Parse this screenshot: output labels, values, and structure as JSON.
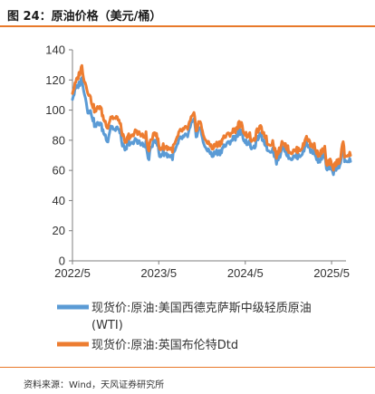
{
  "header": {
    "title": "图 24：原油价格（美元/桶）"
  },
  "footer": {
    "source": "资料来源：Wind，天风证券研究所"
  },
  "chart_data": {
    "type": "line",
    "title": "",
    "xlabel": "",
    "ylabel": "",
    "ylim": [
      0,
      140
    ],
    "yticks": [
      0,
      20,
      40,
      60,
      80,
      100,
      120,
      140
    ],
    "xticks": [
      "2022/5",
      "2023/5",
      "2024/5",
      "2025/5"
    ],
    "xrange": [
      "2022/5",
      "2025/7"
    ],
    "grid": false,
    "legend_position": "bottom",
    "series": [
      {
        "name": "现货价:原油:美国西德克萨斯中级轻质原油(WTI)",
        "name_line1": "现货价:原油:美国西德克萨斯中级轻质原油",
        "name_line2": "(WTI)",
        "color": "#5b9bd5",
        "points": [
          [
            "2022-05-01",
            108
          ],
          [
            "2022-05-15",
            114
          ],
          [
            "2022-06-01",
            118
          ],
          [
            "2022-06-10",
            121
          ],
          [
            "2022-06-25",
            108
          ],
          [
            "2022-07-05",
            100
          ],
          [
            "2022-07-20",
            98
          ],
          [
            "2022-08-05",
            89
          ],
          [
            "2022-08-25",
            92
          ],
          [
            "2022-09-10",
            85
          ],
          [
            "2022-09-28",
            80
          ],
          [
            "2022-10-10",
            90
          ],
          [
            "2022-10-30",
            86
          ],
          [
            "2022-11-10",
            89
          ],
          [
            "2022-11-28",
            78
          ],
          [
            "2022-12-09",
            72
          ],
          [
            "2022-12-25",
            79
          ],
          [
            "2023-01-10",
            77
          ],
          [
            "2023-01-25",
            81
          ],
          [
            "2023-02-10",
            78
          ],
          [
            "2023-02-25",
            76
          ],
          [
            "2023-03-08",
            78
          ],
          [
            "2023-03-17",
            67
          ],
          [
            "2023-03-31",
            75
          ],
          [
            "2023-04-12",
            82
          ],
          [
            "2023-04-28",
            76
          ],
          [
            "2023-05-04",
            69
          ],
          [
            "2023-05-20",
            72
          ],
          [
            "2023-06-10",
            70
          ],
          [
            "2023-06-28",
            69
          ],
          [
            "2023-07-15",
            75
          ],
          [
            "2023-07-31",
            81
          ],
          [
            "2023-08-15",
            82
          ],
          [
            "2023-08-31",
            83
          ],
          [
            "2023-09-15",
            90
          ],
          [
            "2023-09-27",
            93
          ],
          [
            "2023-10-06",
            83
          ],
          [
            "2023-10-20",
            89
          ],
          [
            "2023-11-05",
            80
          ],
          [
            "2023-11-16",
            73
          ],
          [
            "2023-12-01",
            74
          ],
          [
            "2023-12-12",
            69
          ],
          [
            "2023-12-28",
            72
          ],
          [
            "2024-01-15",
            72
          ],
          [
            "2024-01-31",
            76
          ],
          [
            "2024-02-15",
            77
          ],
          [
            "2024-03-01",
            80
          ],
          [
            "2024-03-20",
            82
          ],
          [
            "2024-04-05",
            86
          ],
          [
            "2024-04-15",
            85
          ],
          [
            "2024-05-01",
            79
          ],
          [
            "2024-05-20",
            78
          ],
          [
            "2024-06-03",
            73
          ],
          [
            "2024-06-20",
            81
          ],
          [
            "2024-07-05",
            83
          ],
          [
            "2024-07-25",
            78
          ],
          [
            "2024-08-05",
            73
          ],
          [
            "2024-08-25",
            74
          ],
          [
            "2024-09-10",
            66
          ],
          [
            "2024-09-25",
            70
          ],
          [
            "2024-10-07",
            77
          ],
          [
            "2024-10-25",
            71
          ],
          [
            "2024-11-10",
            68
          ],
          [
            "2024-11-28",
            69
          ],
          [
            "2024-12-15",
            70
          ],
          [
            "2025-01-01",
            72
          ],
          [
            "2025-01-15",
            79
          ],
          [
            "2025-02-01",
            73
          ],
          [
            "2025-02-20",
            72
          ],
          [
            "2025-03-05",
            66
          ],
          [
            "2025-03-20",
            68
          ],
          [
            "2025-04-02",
            71
          ],
          [
            "2025-04-09",
            60
          ],
          [
            "2025-04-25",
            63
          ],
          [
            "2025-05-05",
            58
          ],
          [
            "2025-05-20",
            62
          ],
          [
            "2025-06-05",
            64
          ],
          [
            "2025-06-19",
            75
          ],
          [
            "2025-06-25",
            65
          ],
          [
            "2025-07-10",
            67
          ],
          [
            "2025-07-20",
            66
          ]
        ]
      },
      {
        "name": "现货价:原油:英国布伦特Dtd",
        "color": "#ed7d31",
        "points": [
          [
            "2022-05-01",
            112
          ],
          [
            "2022-05-15",
            118
          ],
          [
            "2022-06-01",
            125
          ],
          [
            "2022-06-10",
            129
          ],
          [
            "2022-06-20",
            120
          ],
          [
            "2022-07-05",
            113
          ],
          [
            "2022-07-20",
            106
          ],
          [
            "2022-08-05",
            99
          ],
          [
            "2022-08-25",
            103
          ],
          [
            "2022-09-10",
            94
          ],
          [
            "2022-09-28",
            89
          ],
          [
            "2022-10-10",
            96
          ],
          [
            "2022-10-30",
            94
          ],
          [
            "2022-11-10",
            95
          ],
          [
            "2022-11-28",
            85
          ],
          [
            "2022-12-09",
            77
          ],
          [
            "2022-12-25",
            83
          ],
          [
            "2023-01-10",
            82
          ],
          [
            "2023-01-25",
            87
          ],
          [
            "2023-02-10",
            84
          ],
          [
            "2023-02-25",
            82
          ],
          [
            "2023-03-08",
            84
          ],
          [
            "2023-03-17",
            73
          ],
          [
            "2023-03-31",
            80
          ],
          [
            "2023-04-12",
            87
          ],
          [
            "2023-04-28",
            80
          ],
          [
            "2023-05-04",
            74
          ],
          [
            "2023-05-20",
            76
          ],
          [
            "2023-06-10",
            75
          ],
          [
            "2023-06-28",
            74
          ],
          [
            "2023-07-15",
            80
          ],
          [
            "2023-07-31",
            86
          ],
          [
            "2023-08-15",
            87
          ],
          [
            "2023-08-31",
            88
          ],
          [
            "2023-09-15",
            94
          ],
          [
            "2023-09-27",
            97
          ],
          [
            "2023-10-06",
            87
          ],
          [
            "2023-10-20",
            93
          ],
          [
            "2023-11-05",
            85
          ],
          [
            "2023-11-16",
            78
          ],
          [
            "2023-12-01",
            79
          ],
          [
            "2023-12-12",
            74
          ],
          [
            "2023-12-28",
            77
          ],
          [
            "2024-01-15",
            78
          ],
          [
            "2024-01-31",
            82
          ],
          [
            "2024-02-15",
            83
          ],
          [
            "2024-03-01",
            85
          ],
          [
            "2024-03-20",
            87
          ],
          [
            "2024-04-05",
            91
          ],
          [
            "2024-04-15",
            90
          ],
          [
            "2024-05-01",
            84
          ],
          [
            "2024-05-20",
            83
          ],
          [
            "2024-06-03",
            78
          ],
          [
            "2024-06-20",
            86
          ],
          [
            "2024-07-05",
            88
          ],
          [
            "2024-07-25",
            83
          ],
          [
            "2024-08-05",
            77
          ],
          [
            "2024-08-25",
            79
          ],
          [
            "2024-09-10",
            70
          ],
          [
            "2024-09-25",
            74
          ],
          [
            "2024-10-07",
            80
          ],
          [
            "2024-10-25",
            75
          ],
          [
            "2024-11-10",
            72
          ],
          [
            "2024-11-28",
            73
          ],
          [
            "2024-12-15",
            74
          ],
          [
            "2025-01-01",
            76
          ],
          [
            "2025-01-15",
            83
          ],
          [
            "2025-02-01",
            77
          ],
          [
            "2025-02-20",
            76
          ],
          [
            "2025-03-05",
            70
          ],
          [
            "2025-03-20",
            72
          ],
          [
            "2025-04-02",
            75
          ],
          [
            "2025-04-09",
            63
          ],
          [
            "2025-04-25",
            66
          ],
          [
            "2025-05-05",
            61
          ],
          [
            "2025-05-20",
            65
          ],
          [
            "2025-06-05",
            67
          ],
          [
            "2025-06-19",
            80
          ],
          [
            "2025-06-25",
            68
          ],
          [
            "2025-07-10",
            71
          ],
          [
            "2025-07-20",
            70
          ]
        ]
      }
    ]
  }
}
